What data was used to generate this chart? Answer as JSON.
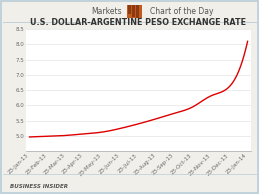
{
  "title": "U.S. DOLLAR-ARGENTINE PESO EXCHANGE RATE",
  "header_text": "Markets",
  "header_right": "Chart of the Day",
  "footer": "BUSINESS INSIDER",
  "line_color": "#dd0000",
  "bg_color": "#f0efea",
  "chart_bg": "#ffffff",
  "border_color": "#b8cdd8",
  "ylim": [
    4.5,
    8.5
  ],
  "yticks": [
    5.0,
    5.5,
    6.0,
    6.5,
    7.0,
    7.5,
    8.0,
    8.5
  ],
  "tick_labels": [
    "23-Jan-13",
    "23-Feb-13",
    "23-Mar-13",
    "23-Apr-13",
    "23-May-13",
    "23-Jun-13",
    "23-Jul-13",
    "23-Aug-13",
    "23-Sep-13",
    "23-Oct-13",
    "23-Nov-13",
    "23-Dec-13",
    "23-Jan-14"
  ],
  "x_values": [
    0,
    1,
    2,
    3,
    4,
    5,
    6,
    7,
    8,
    9,
    10,
    11,
    12
  ],
  "y_values": [
    4.97,
    4.99,
    5.02,
    5.07,
    5.13,
    5.25,
    5.4,
    5.57,
    5.75,
    5.96,
    6.32,
    6.62,
    8.1
  ],
  "title_fontsize": 5.8,
  "header_fontsize": 5.5,
  "tick_fontsize": 4.0,
  "footer_fontsize": 4.0,
  "icon_color": "#c05a20"
}
